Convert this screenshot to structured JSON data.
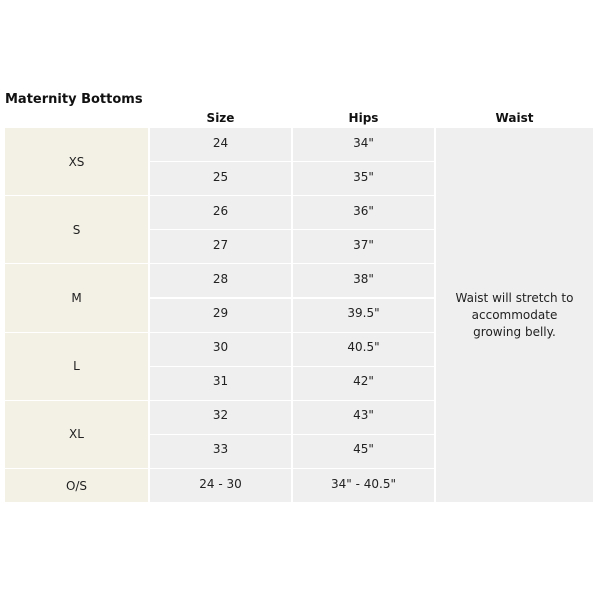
{
  "title": "Maternity Bottoms",
  "table": {
    "header": [
      "Size",
      "Hips",
      "Waist"
    ],
    "rows": [
      {
        "label": "XS",
        "sizes": [
          "24",
          "25"
        ],
        "hips": [
          "34\"",
          "35\""
        ]
      },
      {
        "label": "S",
        "sizes": [
          "26",
          "27"
        ],
        "hips": [
          "36\"",
          "37\""
        ]
      },
      {
        "label": "M",
        "sizes": [
          "28",
          "29"
        ],
        "hips": [
          "38\"",
          "39.5\""
        ]
      },
      {
        "label": "L",
        "sizes": [
          "30",
          "31"
        ],
        "hips": [
          "40.5\"",
          "42\""
        ]
      },
      {
        "label": "XL",
        "sizes": [
          "32",
          "33"
        ],
        "hips": [
          "43\"",
          "45\""
        ]
      },
      {
        "label": "O/S",
        "sizes": [
          "24 - 30"
        ],
        "hips": [
          "34\" - 40.5\""
        ]
      }
    ],
    "waist": "Waist will stretch to accommodate growing belly."
  }
}
